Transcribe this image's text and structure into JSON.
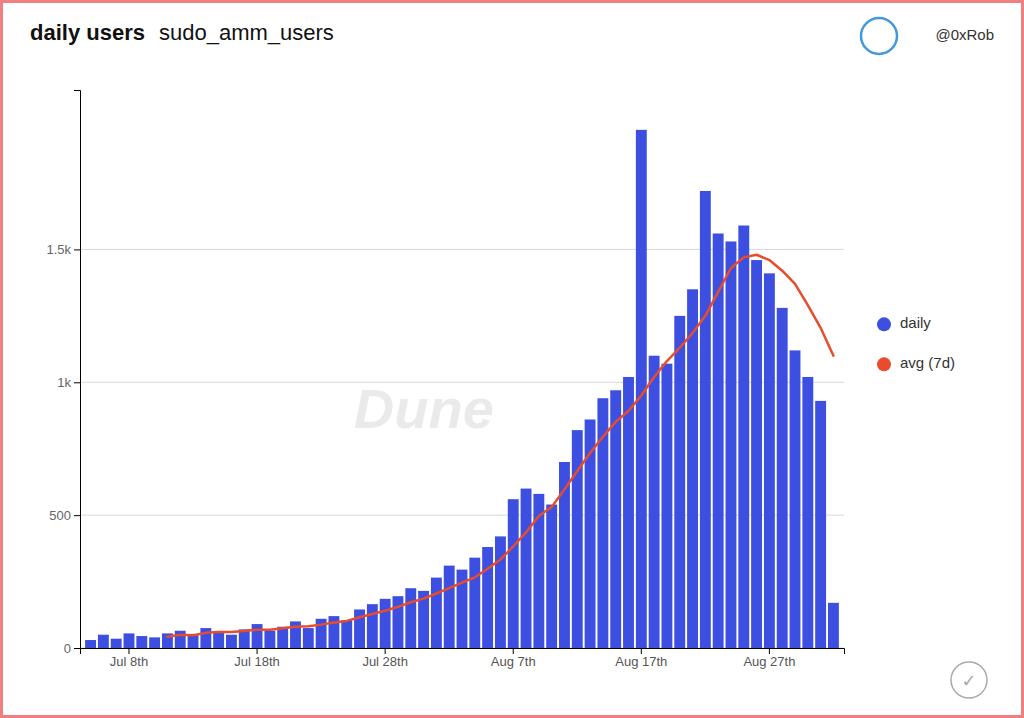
{
  "chart_data": {
    "type": "bar",
    "title": "daily users",
    "subtitle": "sudo_amm_users",
    "categories": [
      null,
      null,
      null,
      "Jul 8th",
      null,
      null,
      null,
      null,
      null,
      null,
      null,
      null,
      null,
      "Jul 18th",
      null,
      null,
      null,
      null,
      null,
      null,
      null,
      null,
      null,
      "Jul 28th",
      null,
      null,
      null,
      null,
      null,
      null,
      null,
      null,
      null,
      "Aug 7th",
      null,
      null,
      null,
      null,
      null,
      null,
      null,
      null,
      null,
      "Aug 17th",
      null,
      null,
      null,
      null,
      null,
      null,
      null,
      null,
      null,
      "Aug 27th",
      null,
      null,
      null,
      null,
      null
    ],
    "series": [
      {
        "name": "daily",
        "type": "bar",
        "color": "#3d4fe0",
        "values": [
          30,
          50,
          35,
          55,
          45,
          40,
          55,
          65,
          50,
          75,
          60,
          50,
          70,
          90,
          65,
          80,
          100,
          75,
          110,
          120,
          105,
          145,
          165,
          185,
          195,
          225,
          215,
          265,
          310,
          295,
          340,
          380,
          420,
          560,
          600,
          580,
          540,
          700,
          820,
          860,
          940,
          970,
          1020,
          1950,
          1100,
          1070,
          1250,
          1350,
          1720,
          1560,
          1530,
          1590,
          1460,
          1410,
          1280,
          1120,
          1020,
          930,
          170
        ]
      },
      {
        "name": "avg (7d)",
        "type": "line",
        "color": "#e84c2b",
        "values": [
          null,
          null,
          null,
          null,
          null,
          null,
          42,
          50,
          48,
          57,
          60,
          60,
          64,
          69,
          69,
          74,
          80,
          82,
          88,
          96,
          102,
          116,
          128,
          140,
          155,
          172,
          186,
          205,
          225,
          246,
          266,
          298,
          333,
          382,
          435,
          497,
          531,
          597,
          666,
          734,
          795,
          851,
          892,
          950,
          1020,
          1080,
          1130,
          1185,
          1250,
          1340,
          1430,
          1470,
          1480,
          1460,
          1420,
          1370,
          1290,
          1205,
          1100
        ]
      }
    ],
    "ylim": [
      0,
      2100
    ],
    "yticks": [
      0,
      500,
      {
        "value": 1000,
        "label": "1k"
      },
      {
        "value": 1500,
        "label": "1.5k"
      }
    ],
    "grid": true,
    "legend": "right",
    "annotations": [
      "Dune",
      "@0xRob",
      "✓"
    ]
  }
}
